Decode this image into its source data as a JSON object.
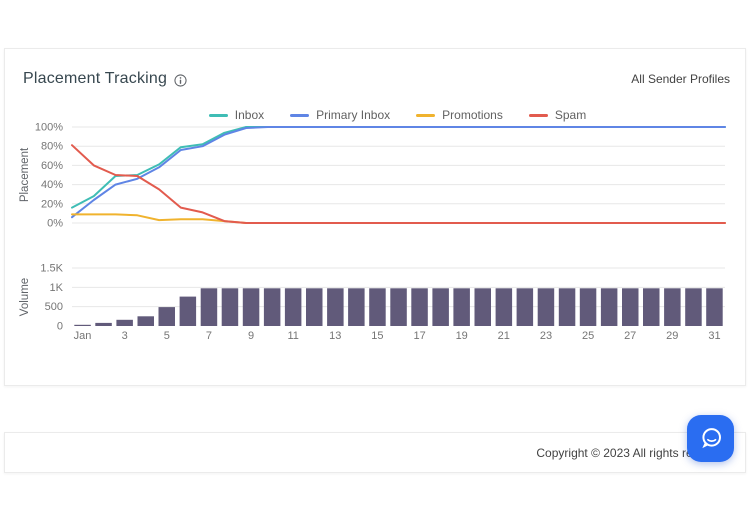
{
  "card": {
    "title": "Placement Tracking",
    "filter_label": "All Sender Profiles"
  },
  "footer": {
    "copyright": "Copyright © 2023 All rights reserved."
  },
  "colors": {
    "chat_button": "#2a6df1",
    "gridline": "#e7e7e7",
    "axis_text": "#757575"
  },
  "chart_data": [
    {
      "type": "line",
      "title": "",
      "xlabel": "",
      "ylabel": "Placement",
      "ylim": [
        0,
        100
      ],
      "y_ticks": [
        "100%",
        "80%",
        "60%",
        "40%",
        "20%",
        "0%"
      ],
      "y_tick_values": [
        100,
        80,
        60,
        40,
        20,
        0
      ],
      "grid": true,
      "legend_position": "top-center",
      "categories": [
        "Jan",
        "2",
        "3",
        "4",
        "5",
        "6",
        "7",
        "8",
        "9",
        "10",
        "11",
        "12",
        "13",
        "14",
        "15",
        "16",
        "17",
        "18",
        "19",
        "20",
        "21",
        "22",
        "23",
        "24",
        "25",
        "26",
        "27",
        "28",
        "29",
        "30",
        "31"
      ],
      "shown_x_ticks": [
        "Jan",
        "3",
        "5",
        "7",
        "9",
        "11",
        "13",
        "15",
        "17",
        "19",
        "21",
        "23",
        "25",
        "27",
        "29",
        "31"
      ],
      "series": [
        {
          "name": "Inbox",
          "color": "#3fbdb5",
          "values": [
            16,
            28,
            49,
            50,
            61,
            79,
            82,
            94,
            100,
            100,
            100,
            100,
            100,
            100,
            100,
            100,
            100,
            100,
            100,
            100,
            100,
            100,
            100,
            100,
            100,
            100,
            100,
            100,
            100,
            100,
            100
          ]
        },
        {
          "name": "Primary Inbox",
          "color": "#5f85e5",
          "values": [
            6,
            24,
            40,
            46,
            58,
            76,
            80,
            92,
            99,
            100,
            100,
            100,
            100,
            100,
            100,
            100,
            100,
            100,
            100,
            100,
            100,
            100,
            100,
            100,
            100,
            100,
            100,
            100,
            100,
            100,
            100
          ]
        },
        {
          "name": "Promotions",
          "color": "#f0b32e",
          "values": [
            9,
            9,
            9,
            8,
            3,
            4,
            4,
            2,
            0,
            0,
            0,
            0,
            0,
            0,
            0,
            0,
            0,
            0,
            0,
            0,
            0,
            0,
            0,
            0,
            0,
            0,
            0,
            0,
            0,
            0,
            0
          ]
        },
        {
          "name": "Spam",
          "color": "#e25b4e",
          "values": [
            81,
            60,
            50,
            49,
            35,
            16,
            11,
            2,
            0,
            0,
            0,
            0,
            0,
            0,
            0,
            0,
            0,
            0,
            0,
            0,
            0,
            0,
            0,
            0,
            0,
            0,
            0,
            0,
            0,
            0,
            0
          ]
        }
      ]
    },
    {
      "type": "bar",
      "title": "",
      "xlabel": "",
      "ylabel": "Volume",
      "ylim": [
        0,
        1500
      ],
      "y_ticks": [
        "1.5K",
        "1K",
        "500",
        "0"
      ],
      "y_tick_values": [
        1500,
        1000,
        500,
        0
      ],
      "grid": true,
      "color": "#615a7a",
      "categories": [
        "Jan",
        "2",
        "3",
        "4",
        "5",
        "6",
        "7",
        "8",
        "9",
        "10",
        "11",
        "12",
        "13",
        "14",
        "15",
        "16",
        "17",
        "18",
        "19",
        "20",
        "21",
        "22",
        "23",
        "24",
        "25",
        "26",
        "27",
        "28",
        "29",
        "30",
        "31"
      ],
      "values": [
        30,
        80,
        160,
        250,
        490,
        760,
        975,
        975,
        975,
        975,
        975,
        975,
        975,
        975,
        975,
        975,
        975,
        975,
        975,
        975,
        975,
        975,
        975,
        975,
        975,
        975,
        975,
        975,
        975,
        975,
        975
      ]
    }
  ]
}
